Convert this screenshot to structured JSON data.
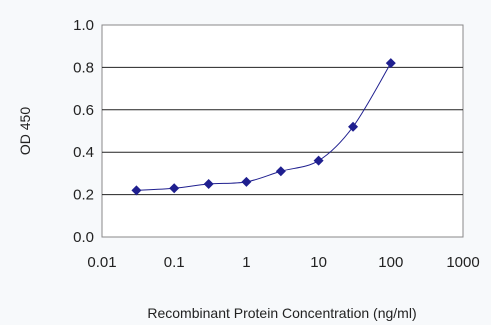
{
  "chart_data": {
    "type": "line",
    "title": "",
    "xlabel": "Recombinant Protein Concentration (ng/ml)",
    "ylabel": "OD 450",
    "x_scale": "log",
    "xlim": [
      0.01,
      1000
    ],
    "ylim": [
      0.0,
      1.0
    ],
    "x_ticks": [
      "0.01",
      "0.1",
      "1",
      "10",
      "100",
      "1000"
    ],
    "y_ticks": [
      "0.0",
      "0.2",
      "0.4",
      "0.6",
      "0.8",
      "1.0"
    ],
    "grid": "horizontal",
    "series": [
      {
        "color": "#1f1f8f",
        "marker": "diamond",
        "x": [
          0.03,
          0.1,
          0.3,
          1,
          3,
          10,
          30,
          100
        ],
        "y": [
          0.22,
          0.23,
          0.25,
          0.26,
          0.31,
          0.36,
          0.52,
          0.82
        ]
      }
    ]
  }
}
